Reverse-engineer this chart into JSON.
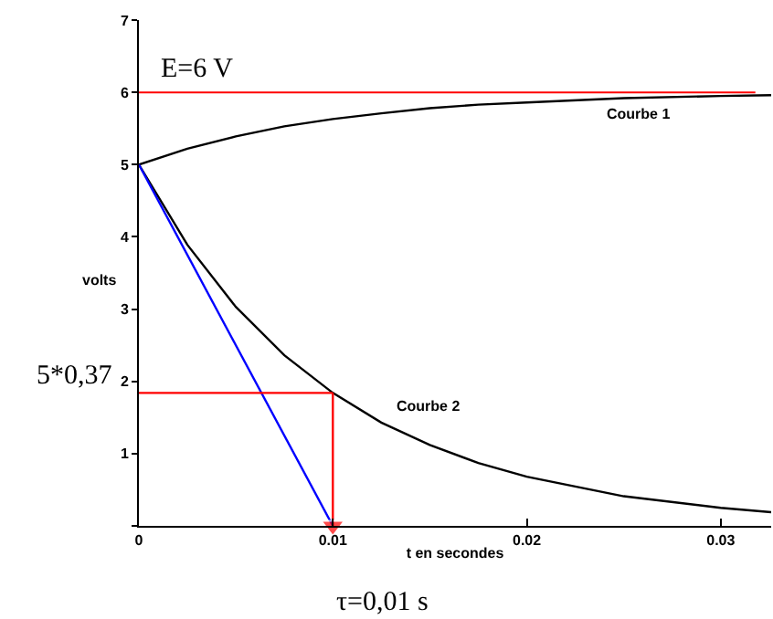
{
  "chart_data": {
    "type": "line",
    "xlabel": "t en secondes",
    "ylabel": "volts",
    "xlim": [
      0,
      0.0326
    ],
    "xticks": [
      0,
      0.01,
      0.02,
      0.03
    ],
    "ylim": [
      0,
      7
    ],
    "yticks": [
      {
        "value": 0,
        "label": null
      },
      1,
      2,
      3,
      4,
      5,
      6,
      7
    ],
    "grid": false,
    "marker": "none",
    "line_style": "solid",
    "series": [
      {
        "name": "Courbe 1",
        "color": "#000000",
        "x": [
          0,
          0.0025,
          0.005,
          0.0075,
          0.01,
          0.0125,
          0.015,
          0.0175,
          0.02,
          0.025,
          0.03,
          0.0326
        ],
        "values": [
          5,
          5.22,
          5.39,
          5.53,
          5.63,
          5.71,
          5.78,
          5.83,
          5.86,
          5.92,
          5.95,
          5.96
        ]
      },
      {
        "name": "Courbe 2",
        "color": "#000000",
        "x": [
          0,
          0.0025,
          0.005,
          0.0075,
          0.01,
          0.0125,
          0.015,
          0.0175,
          0.02,
          0.025,
          0.03,
          0.0326
        ],
        "values": [
          5,
          3.89,
          3.03,
          2.36,
          1.84,
          1.43,
          1.12,
          0.87,
          0.68,
          0.41,
          0.25,
          0.19
        ]
      },
      {
        "color": "#0000ff",
        "x": [
          0,
          0.01
        ],
        "values": [
          5,
          0
        ]
      },
      {
        "color": "#ff0000",
        "x": [
          0,
          0.01
        ],
        "values": [
          1.84,
          1.84
        ]
      },
      {
        "color": "#ff0000",
        "x": [
          0.01,
          0.01
        ],
        "values": [
          1.84,
          0
        ],
        "marker": "triangle"
      }
    ],
    "ref_lines": [
      {
        "axis": "y",
        "value": 6,
        "label": "E=6 V",
        "color": "#ff0000"
      }
    ],
    "annotations": [
      "5*0,37",
      "τ=0,01 s"
    ]
  }
}
